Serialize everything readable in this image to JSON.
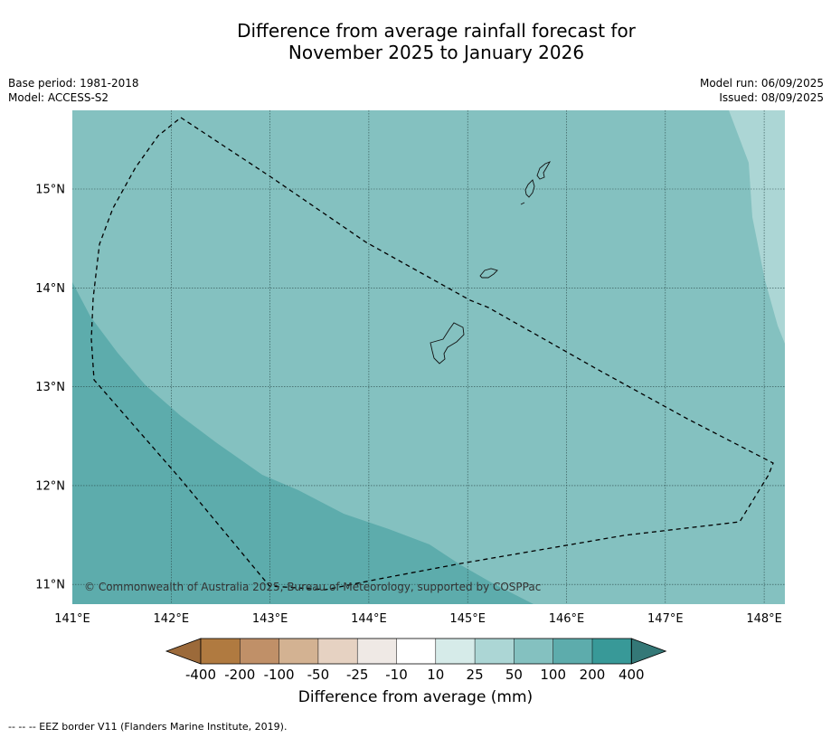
{
  "title_line1": "Difference from average rainfall forecast for",
  "title_line2": "November 2025 to January 2026",
  "base_period": "Base period: 1981-2018",
  "model": "Model: ACCESS-S2",
  "model_run": "Model run: 06/09/2025",
  "issued": "Issued: 08/09/2025",
  "copyright": "© Commonwealth of Australia 2025, Bureau of Meteorology, supported by COSPPac",
  "lon_labels": [
    "141°E",
    "142°E",
    "143°E",
    "144°E",
    "145°E",
    "146°E",
    "147°E",
    "148°E"
  ],
  "lat_labels": [
    "15°N",
    "14°N",
    "13°N",
    "12°N",
    "11°N"
  ],
  "colorbar": {
    "title": "Difference from average (mm)",
    "ticks": [
      "-400",
      "-200",
      "-100",
      "-50",
      "-25",
      "-10",
      "10",
      "25",
      "50",
      "100",
      "200",
      "400"
    ],
    "colors": [
      "#9c6a3a",
      "#b07a40",
      "#c09068",
      "#d3b292",
      "#e6d2c2",
      "#efe9e5",
      "#ffffff",
      "#d6ebe9",
      "#acd6d5",
      "#84c1c0",
      "#5dacac",
      "#389998",
      "#347877"
    ]
  },
  "footer": "--  --  -- EEZ border V11 (Flanders Marine Institute, 2019).",
  "colors": {
    "light_teal": "#acd6d5",
    "mid_teal": "#84c1c0",
    "dark_teal": "#5dacac"
  }
}
